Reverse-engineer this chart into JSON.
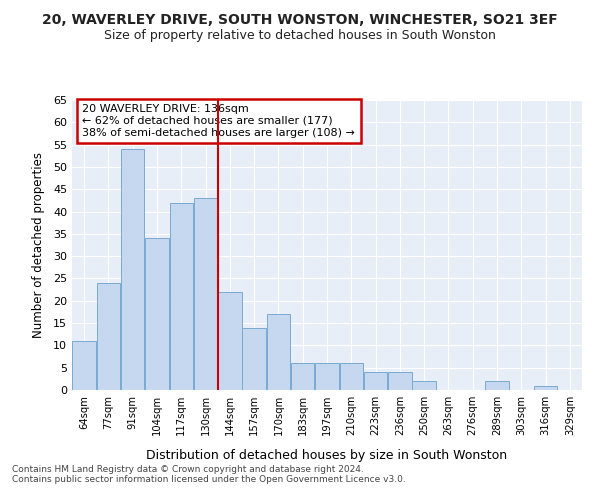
{
  "title1": "20, WAVERLEY DRIVE, SOUTH WONSTON, WINCHESTER, SO21 3EF",
  "title2": "Size of property relative to detached houses in South Wonston",
  "xlabel": "Distribution of detached houses by size in South Wonston",
  "ylabel": "Number of detached properties",
  "categories": [
    "64sqm",
    "77sqm",
    "91sqm",
    "104sqm",
    "117sqm",
    "130sqm",
    "144sqm",
    "157sqm",
    "170sqm",
    "183sqm",
    "197sqm",
    "210sqm",
    "223sqm",
    "236sqm",
    "250sqm",
    "263sqm",
    "276sqm",
    "289sqm",
    "303sqm",
    "316sqm",
    "329sqm"
  ],
  "values": [
    11,
    24,
    54,
    34,
    42,
    43,
    22,
    14,
    17,
    6,
    6,
    6,
    4,
    4,
    2,
    0,
    0,
    2,
    0,
    1,
    0
  ],
  "bar_color": "#c5d8f0",
  "bar_edge_color": "#7aaad0",
  "highlight_bar_index": 5,
  "highlight_color": "#cc0000",
  "annotation_text": "20 WAVERLEY DRIVE: 136sqm\n← 62% of detached houses are smaller (177)\n38% of semi-detached houses are larger (108) →",
  "annotation_box_color": "#cc0000",
  "bg_color": "#e8eef8",
  "footer1": "Contains HM Land Registry data © Crown copyright and database right 2024.",
  "footer2": "Contains public sector information licensed under the Open Government Licence v3.0.",
  "ylim": [
    0,
    65
  ],
  "yticks": [
    0,
    5,
    10,
    15,
    20,
    25,
    30,
    35,
    40,
    45,
    50,
    55,
    60,
    65
  ]
}
